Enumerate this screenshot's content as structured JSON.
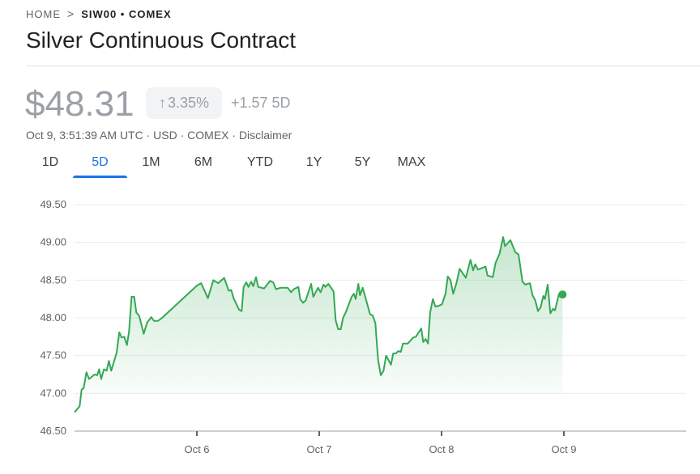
{
  "breadcrumb": {
    "home": "HOME",
    "separator": ">",
    "current": "SIW00 • COMEX"
  },
  "title": "Silver Continuous Contract",
  "quote": {
    "price": "$48.31",
    "change_percent": "3.35%",
    "change_direction_icon": "arrow-up-icon",
    "change_abs": "+1.57 5D",
    "subline": "Oct 9, 3:51:39 AM UTC · USD · COMEX · Disclaimer"
  },
  "tabs": [
    {
      "label": "1D",
      "active": false
    },
    {
      "label": "5D",
      "active": true
    },
    {
      "label": "1M",
      "active": false
    },
    {
      "label": "6M",
      "active": false
    },
    {
      "label": "YTD",
      "active": false
    },
    {
      "label": "1Y",
      "active": false
    },
    {
      "label": "5Y",
      "active": false
    },
    {
      "label": "MAX",
      "active": false
    }
  ],
  "colors": {
    "line": "#34a853",
    "accent": "#1a73e8",
    "muted": "#9aa0a6"
  },
  "chart_data": {
    "type": "area",
    "title": "",
    "xlabel": "",
    "ylabel": "",
    "xlim": [
      "Oct 5 00:00",
      "Oct 10 00:00"
    ],
    "ylim": [
      46.5,
      49.5
    ],
    "y_ticks": [
      "46.50",
      "47.00",
      "47.50",
      "48.00",
      "48.50",
      "49.00",
      "49.50"
    ],
    "x_ticks": [
      {
        "label": "Oct 6",
        "at": "Oct 6 00:00"
      },
      {
        "label": "Oct 7",
        "at": "Oct 7 00:00"
      },
      {
        "label": "Oct 8",
        "at": "Oct 8 00:00"
      },
      {
        "label": "Oct 9",
        "at": "Oct 9 00:00"
      }
    ],
    "grid": true,
    "last_point_marker": true,
    "points": [
      [
        "Oct 5 00:00",
        46.75
      ],
      [
        "Oct 5 01:00",
        46.83
      ],
      [
        "Oct 5 01:23",
        47.05
      ],
      [
        "Oct 5 01:48",
        47.07
      ],
      [
        "Oct 5 02:20",
        47.28
      ],
      [
        "Oct 5 02:52",
        47.19
      ],
      [
        "Oct 5 03:55",
        47.25
      ],
      [
        "Oct 5 04:27",
        47.24
      ],
      [
        "Oct 5 04:49",
        47.32
      ],
      [
        "Oct 5 05:14",
        47.19
      ],
      [
        "Oct 5 05:46",
        47.32
      ],
      [
        "Oct 5 06:18",
        47.3
      ],
      [
        "Oct 5 06:44",
        47.43
      ],
      [
        "Oct 5 07:12",
        47.3
      ],
      [
        "Oct 5 08:16",
        47.54
      ],
      [
        "Oct 5 08:47",
        47.81
      ],
      [
        "Oct 5 09:13",
        47.74
      ],
      [
        "Oct 5 09:45",
        47.75
      ],
      [
        "Oct 5 10:17",
        47.64
      ],
      [
        "Oct 5 10:42",
        47.82
      ],
      [
        "Oct 5 11:11",
        48.28
      ],
      [
        "Oct 5 11:42",
        48.28
      ],
      [
        "Oct 5 12:08",
        48.07
      ],
      [
        "Oct 5 12:40",
        48.03
      ],
      [
        "Oct 5 13:34",
        47.79
      ],
      [
        "Oct 5 14:15",
        47.94
      ],
      [
        "Oct 5 15:03",
        48.01
      ],
      [
        "Oct 5 15:35",
        47.96
      ],
      [
        "Oct 5 16:22",
        47.96
      ],
      [
        "Oct 5 17:10",
        48.0
      ],
      [
        "Oct 6 00:03",
        48.43
      ],
      [
        "Oct 6 00:51",
        48.46
      ],
      [
        "Oct 6 02:10",
        48.26
      ],
      [
        "Oct 6 03:14",
        48.5
      ],
      [
        "Oct 6 04:11",
        48.46
      ],
      [
        "Oct 6 05:21",
        48.53
      ],
      [
        "Oct 6 06:15",
        48.36
      ],
      [
        "Oct 6 06:44",
        48.37
      ],
      [
        "Oct 6 07:12",
        48.26
      ],
      [
        "Oct 6 08:16",
        48.11
      ],
      [
        "Oct 6 08:47",
        48.09
      ],
      [
        "Oct 6 09:10",
        48.41
      ],
      [
        "Oct 6 09:42",
        48.47
      ],
      [
        "Oct 6 10:07",
        48.41
      ],
      [
        "Oct 6 10:39",
        48.48
      ],
      [
        "Oct 6 11:04",
        48.42
      ],
      [
        "Oct 6 11:36",
        48.54
      ],
      [
        "Oct 6 12:02",
        48.41
      ],
      [
        "Oct 6 13:12",
        48.39
      ],
      [
        "Oct 6 14:21",
        48.49
      ],
      [
        "Oct 6 14:59",
        48.47
      ],
      [
        "Oct 6 15:31",
        48.38
      ],
      [
        "Oct 6 16:29",
        48.4
      ],
      [
        "Oct 6 17:48",
        48.4
      ],
      [
        "Oct 6 18:29",
        48.34
      ],
      [
        "Oct 6 19:01",
        48.38
      ],
      [
        "Oct 6 19:55",
        48.41
      ],
      [
        "Oct 6 20:17",
        48.25
      ],
      [
        "Oct 6 20:49",
        48.2
      ],
      [
        "Oct 6 21:21",
        48.23
      ],
      [
        "Oct 6 22:25",
        48.45
      ],
      [
        "Oct 6 22:50",
        48.28
      ],
      [
        "Oct 6 23:47",
        48.4
      ],
      [
        "Oct 7 00:16",
        48.34
      ],
      [
        "Oct 7 00:51",
        48.44
      ],
      [
        "Oct 7 01:13",
        48.41
      ],
      [
        "Oct 7 01:48",
        48.45
      ],
      [
        "Oct 7 02:49",
        48.35
      ],
      [
        "Oct 7 03:14",
        47.97
      ],
      [
        "Oct 7 03:43",
        47.85
      ],
      [
        "Oct 7 04:14",
        47.85
      ],
      [
        "Oct 7 04:40",
        48.0
      ],
      [
        "Oct 7 05:11",
        48.07
      ],
      [
        "Oct 7 06:22",
        48.28
      ],
      [
        "Oct 7 06:47",
        48.32
      ],
      [
        "Oct 7 07:09",
        48.25
      ],
      [
        "Oct 7 07:41",
        48.45
      ],
      [
        "Oct 7 08:00",
        48.3
      ],
      [
        "Oct 7 08:32",
        48.4
      ],
      [
        "Oct 7 09:58",
        48.05
      ],
      [
        "Oct 7 10:29",
        48.03
      ],
      [
        "Oct 7 11:01",
        47.93
      ],
      [
        "Oct 7 11:33",
        47.44
      ],
      [
        "Oct 7 12:05",
        47.24
      ],
      [
        "Oct 7 12:37",
        47.3
      ],
      [
        "Oct 7 13:08",
        47.5
      ],
      [
        "Oct 7 14:05",
        47.38
      ],
      [
        "Oct 7 14:31",
        47.53
      ],
      [
        "Oct 7 15:03",
        47.53
      ],
      [
        "Oct 7 15:31",
        47.56
      ],
      [
        "Oct 7 16:00",
        47.55
      ],
      [
        "Oct 7 16:25",
        47.66
      ],
      [
        "Oct 7 17:23",
        47.66
      ],
      [
        "Oct 7 18:26",
        47.74
      ],
      [
        "Oct 7 18:58",
        47.75
      ],
      [
        "Oct 7 20:02",
        47.86
      ],
      [
        "Oct 7 20:24",
        47.68
      ],
      [
        "Oct 7 20:52",
        47.72
      ],
      [
        "Oct 7 21:21",
        47.66
      ],
      [
        "Oct 7 21:46",
        48.07
      ],
      [
        "Oct 7 22:18",
        48.25
      ],
      [
        "Oct 7 22:47",
        48.15
      ],
      [
        "Oct 7 23:28",
        48.16
      ],
      [
        "Oct 8 00:06",
        48.18
      ],
      [
        "Oct 8 00:47",
        48.32
      ],
      [
        "Oct 8 01:13",
        48.55
      ],
      [
        "Oct 8 01:45",
        48.5
      ],
      [
        "Oct 8 02:17",
        48.32
      ],
      [
        "Oct 8 02:55",
        48.46
      ],
      [
        "Oct 8 03:33",
        48.65
      ],
      [
        "Oct 8 04:46",
        48.53
      ],
      [
        "Oct 8 05:40",
        48.77
      ],
      [
        "Oct 8 06:12",
        48.63
      ],
      [
        "Oct 8 06:37",
        48.71
      ],
      [
        "Oct 8 07:09",
        48.64
      ],
      [
        "Oct 8 08:38",
        48.68
      ],
      [
        "Oct 8 09:01",
        48.56
      ],
      [
        "Oct 8 10:04",
        48.54
      ],
      [
        "Oct 8 10:36",
        48.73
      ],
      [
        "Oct 8 11:23",
        48.85
      ],
      [
        "Oct 8 12:05",
        49.07
      ],
      [
        "Oct 8 12:27",
        48.95
      ],
      [
        "Oct 8 13:31",
        49.03
      ],
      [
        "Oct 8 14:28",
        48.87
      ],
      [
        "Oct 8 15:06",
        48.84
      ],
      [
        "Oct 8 15:53",
        48.48
      ],
      [
        "Oct 8 16:25",
        48.44
      ],
      [
        "Oct 8 17:20",
        48.46
      ],
      [
        "Oct 8 17:51",
        48.3
      ],
      [
        "Oct 8 18:23",
        48.23
      ],
      [
        "Oct 8 18:55",
        48.09
      ],
      [
        "Oct 8 19:26",
        48.14
      ],
      [
        "Oct 8 19:58",
        48.29
      ],
      [
        "Oct 8 20:17",
        48.25
      ],
      [
        "Oct 8 20:49",
        48.44
      ],
      [
        "Oct 8 21:21",
        48.06
      ],
      [
        "Oct 8 21:50",
        48.12
      ],
      [
        "Oct 8 22:15",
        48.1
      ],
      [
        "Oct 8 23:03",
        48.32
      ],
      [
        "Oct 8 23:44",
        48.31
      ]
    ]
  }
}
